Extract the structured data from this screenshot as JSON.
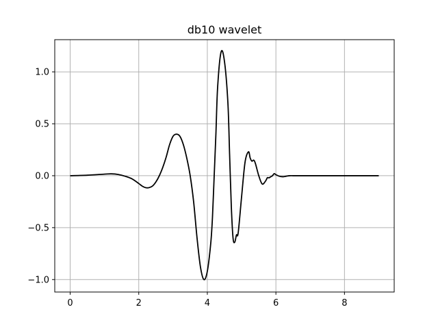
{
  "chart_data": {
    "type": "line",
    "title": "db10 wavelet",
    "xlabel": "",
    "ylabel": "",
    "xlim": [
      -0.45,
      9.45
    ],
    "ylim": [
      -1.12,
      1.31
    ],
    "grid": true,
    "line_color": "#000000",
    "grid_color": "#b0b0b0",
    "x_ticks": [
      0,
      2,
      4,
      6,
      8
    ],
    "x_tick_labels": [
      "0",
      "2",
      "4",
      "6",
      "8"
    ],
    "y_ticks": [
      -1.0,
      -0.5,
      0.0,
      0.5,
      1.0
    ],
    "y_tick_labels": [
      "−1.0",
      "−0.5",
      "0.0",
      "0.5",
      "1.0"
    ],
    "series": [
      {
        "x": [
          0,
          0.5,
          1.0,
          1.2,
          1.4,
          1.6,
          1.8,
          2.0,
          2.1,
          2.2,
          2.3,
          2.4,
          2.5,
          2.6,
          2.7,
          2.8,
          2.9,
          3.0,
          3.1,
          3.2,
          3.3,
          3.4,
          3.5,
          3.6,
          3.7,
          3.8,
          3.9,
          4.0,
          4.1,
          4.15,
          4.2,
          4.25,
          4.3,
          4.4,
          4.5,
          4.6,
          4.65,
          4.7,
          4.75,
          4.8,
          4.85,
          4.9,
          5.0,
          5.1,
          5.2,
          5.25,
          5.3,
          5.35,
          5.4,
          5.5,
          5.6,
          5.7,
          5.75,
          5.8,
          5.85,
          5.9,
          5.95,
          6.0,
          6.1,
          6.2,
          6.3,
          6.4,
          6.5,
          6.6,
          6.7,
          6.8,
          6.9,
          7.0,
          7.2,
          7.5,
          8.0,
          9.0
        ],
        "y": [
          0.0,
          0.005,
          0.015,
          0.018,
          0.012,
          -0.005,
          -0.03,
          -0.075,
          -0.1,
          -0.115,
          -0.115,
          -0.1,
          -0.06,
          0.0,
          0.08,
          0.18,
          0.3,
          0.38,
          0.4,
          0.38,
          0.3,
          0.17,
          0.0,
          -0.25,
          -0.6,
          -0.88,
          -1.0,
          -0.92,
          -0.65,
          -0.4,
          0.0,
          0.4,
          0.85,
          1.19,
          1.1,
          0.7,
          0.2,
          -0.3,
          -0.6,
          -0.64,
          -0.57,
          -0.55,
          -0.2,
          0.13,
          0.23,
          0.17,
          0.14,
          0.15,
          0.12,
          0.0,
          -0.08,
          -0.05,
          -0.02,
          -0.02,
          -0.01,
          0.0,
          0.02,
          0.01,
          -0.005,
          -0.01,
          -0.005,
          0.0,
          0.0,
          0.0,
          0.0,
          0.0,
          0.0,
          0.0,
          0.0,
          0.0,
          0.0,
          0.0
        ]
      }
    ]
  }
}
